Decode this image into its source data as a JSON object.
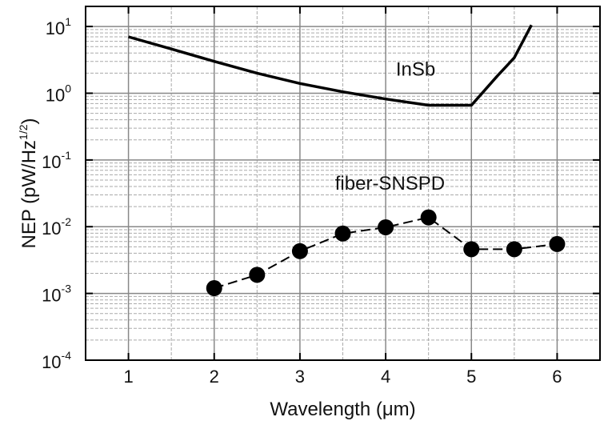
{
  "chart_data": {
    "type": "line",
    "xlabel": "Wavelength (μm)",
    "ylabel": "NEP (pW/Hz",
    "ylabel_sup": "1/2",
    "ylabel_suffix": ")",
    "xlim": [
      0.5,
      6.5
    ],
    "ylim": [
      0.0001,
      20
    ],
    "yscale": "log",
    "grid": true,
    "x_ticks": [
      1,
      2,
      3,
      4,
      5,
      6
    ],
    "x_tick_labels": [
      "1",
      "2",
      "3",
      "4",
      "5",
      "6"
    ],
    "y_ticks": [
      {
        "base": "10",
        "exp": "1",
        "value": 10
      },
      {
        "base": "10",
        "exp": "0",
        "value": 1
      },
      {
        "base": "10",
        "exp": "-1",
        "value": 0.1
      },
      {
        "base": "10",
        "exp": "-2",
        "value": 0.01
      },
      {
        "base": "10",
        "exp": "-3",
        "value": 0.001
      },
      {
        "base": "10",
        "exp": "-4",
        "value": 0.0001
      }
    ],
    "series": [
      {
        "name": "InSb",
        "style": "solid-line",
        "x": [
          1.0,
          1.5,
          2.0,
          2.5,
          3.0,
          3.5,
          4.0,
          4.5,
          5.0,
          5.3,
          5.5,
          5.7
        ],
        "y": [
          7.0,
          4.6,
          3.0,
          2.0,
          1.4,
          1.05,
          0.82,
          0.66,
          0.66,
          1.8,
          3.4,
          10.5
        ]
      },
      {
        "name": "fiber-SNSPD",
        "style": "dashed-markers",
        "x": [
          2.0,
          2.5,
          3.0,
          3.5,
          4.0,
          4.5,
          5.0,
          5.5,
          6.0
        ],
        "y": [
          0.0012,
          0.0019,
          0.0043,
          0.0079,
          0.0098,
          0.0138,
          0.0046,
          0.0046,
          0.0055
        ]
      }
    ],
    "annotations": [
      {
        "text": "InSb",
        "x": 4.35,
        "y": 2.3
      },
      {
        "text": "fiber-SNSPD",
        "x": 4.05,
        "y": 0.045
      }
    ]
  }
}
